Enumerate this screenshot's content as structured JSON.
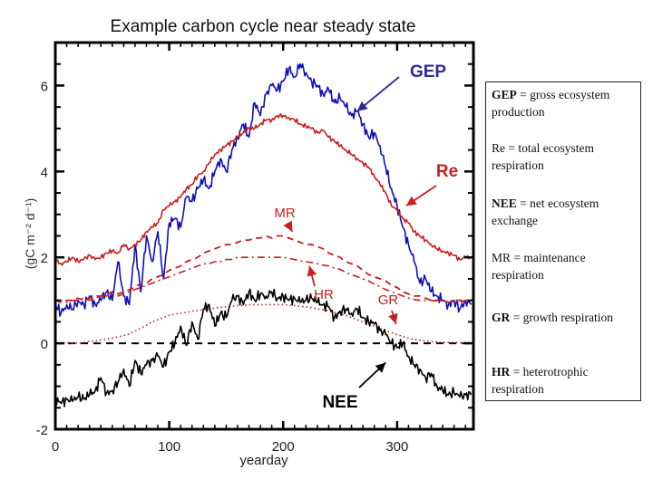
{
  "chart_data": {
    "type": "line",
    "title": "Example carbon cycle near steady state",
    "xlabel": "yearday",
    "ylabel": "(gC m⁻² d⁻¹)",
    "xlim": [
      0,
      367
    ],
    "ylim": [
      -2,
      7
    ],
    "xticks": [
      0,
      100,
      200,
      300
    ],
    "xtick_labels": [
      "0",
      "100",
      "200",
      "300"
    ],
    "yticks": [
      -2,
      0,
      2,
      4,
      6
    ],
    "ytick_labels": [
      "-2",
      "0",
      "2",
      "4",
      "6"
    ],
    "grid": false,
    "zero_line": {
      "y": 0,
      "style": "dashed",
      "color": "#000000"
    },
    "x": [
      0,
      5,
      10,
      15,
      20,
      25,
      30,
      35,
      40,
      45,
      50,
      55,
      60,
      65,
      70,
      75,
      80,
      85,
      90,
      95,
      100,
      105,
      110,
      115,
      120,
      125,
      130,
      135,
      140,
      145,
      150,
      155,
      160,
      165,
      170,
      175,
      180,
      185,
      190,
      195,
      200,
      205,
      210,
      215,
      220,
      225,
      230,
      235,
      240,
      245,
      250,
      255,
      260,
      265,
      270,
      275,
      280,
      285,
      290,
      295,
      300,
      305,
      310,
      315,
      320,
      325,
      330,
      335,
      340,
      345,
      350,
      355,
      360,
      365
    ],
    "series": [
      {
        "name": "GEP",
        "color": "#1010b8",
        "style": "solid",
        "values": [
          0.9,
          0.7,
          0.9,
          0.8,
          1.0,
          0.9,
          1.1,
          0.9,
          1.0,
          1.2,
          1.0,
          1.9,
          1.1,
          0.9,
          2.3,
          1.2,
          2.5,
          1.9,
          2.6,
          1.5,
          2.8,
          2.9,
          2.7,
          3.4,
          3.3,
          3.6,
          3.8,
          3.6,
          4.0,
          4.3,
          4.0,
          4.5,
          4.8,
          5.1,
          4.8,
          5.6,
          5.3,
          5.8,
          6.0,
          5.9,
          6.1,
          6.4,
          6.2,
          6.5,
          6.3,
          6.1,
          6.0,
          5.8,
          5.9,
          5.6,
          5.7,
          5.5,
          5.3,
          5.4,
          5.1,
          4.8,
          4.9,
          4.6,
          4.1,
          3.6,
          3.2,
          2.7,
          2.3,
          1.9,
          1.4,
          1.5,
          1.2,
          1.1,
          1.0,
          0.9,
          1.0,
          0.8,
          1.0,
          0.9
        ]
      },
      {
        "name": "Re",
        "color": "#c81e1e",
        "style": "solid",
        "values": [
          1.95,
          1.85,
          1.9,
          2.0,
          1.9,
          1.95,
          2.05,
          1.95,
          2.0,
          2.1,
          2.15,
          2.1,
          2.3,
          2.2,
          2.3,
          2.4,
          2.6,
          2.7,
          2.8,
          3.1,
          3.2,
          3.3,
          3.4,
          3.6,
          3.7,
          3.9,
          4.0,
          4.2,
          4.4,
          4.5,
          4.6,
          4.7,
          4.8,
          4.9,
          5.0,
          5.0,
          5.1,
          5.2,
          5.2,
          5.3,
          5.3,
          5.25,
          5.2,
          5.1,
          5.05,
          5.0,
          4.9,
          4.95,
          4.8,
          4.7,
          4.6,
          4.5,
          4.4,
          4.3,
          4.2,
          4.1,
          3.9,
          3.7,
          3.5,
          3.2,
          3.1,
          2.9,
          2.8,
          2.6,
          2.5,
          2.4,
          2.3,
          2.2,
          2.15,
          2.1,
          2.05,
          1.95,
          2.0,
          2.0
        ]
      },
      {
        "name": "MR",
        "color": "#c81e1e",
        "style": "dashed",
        "values": [
          1.0,
          0.95,
          1.0,
          1.0,
          1.05,
          1.0,
          1.05,
          1.1,
          1.1,
          1.15,
          1.2,
          1.15,
          1.2,
          1.25,
          1.3,
          1.4,
          1.4,
          1.5,
          1.55,
          1.6,
          1.7,
          1.75,
          1.8,
          1.9,
          1.95,
          2.0,
          2.1,
          2.15,
          2.2,
          2.25,
          2.3,
          2.3,
          2.35,
          2.4,
          2.4,
          2.45,
          2.45,
          2.5,
          2.45,
          2.5,
          2.5,
          2.45,
          2.4,
          2.35,
          2.3,
          2.3,
          2.25,
          2.2,
          2.1,
          2.05,
          2.0,
          1.9,
          1.85,
          1.8,
          1.7,
          1.6,
          1.55,
          1.5,
          1.45,
          1.35,
          1.3,
          1.2,
          1.15,
          1.1,
          1.1,
          1.05,
          1.0,
          1.0,
          1.0,
          0.95,
          1.0,
          1.0,
          1.0,
          1.0
        ]
      },
      {
        "name": "HR",
        "color": "#c81e1e",
        "style": "dashdot",
        "values": [
          1.0,
          1.0,
          0.95,
          1.0,
          1.0,
          1.05,
          1.0,
          1.05,
          1.1,
          1.1,
          1.15,
          1.1,
          1.15,
          1.2,
          1.25,
          1.3,
          1.35,
          1.4,
          1.45,
          1.5,
          1.55,
          1.6,
          1.65,
          1.7,
          1.75,
          1.8,
          1.85,
          1.85,
          1.9,
          1.9,
          1.95,
          1.95,
          2.0,
          2.0,
          2.0,
          2.0,
          2.0,
          2.0,
          2.0,
          2.0,
          2.0,
          1.98,
          1.95,
          1.92,
          1.9,
          1.88,
          1.85,
          1.82,
          1.8,
          1.75,
          1.72,
          1.65,
          1.6,
          1.55,
          1.5,
          1.45,
          1.38,
          1.32,
          1.25,
          1.2,
          1.15,
          1.1,
          1.05,
          1.02,
          1.0,
          1.0,
          1.0,
          0.98,
          1.0,
          0.95,
          1.0,
          0.95,
          1.0,
          1.0
        ]
      },
      {
        "name": "GR",
        "color": "#c81e1e",
        "style": "dotted",
        "values": [
          0.0,
          0.0,
          0.02,
          0.0,
          0.0,
          0.02,
          0.05,
          0.05,
          0.08,
          0.1,
          0.12,
          0.15,
          0.18,
          0.22,
          0.28,
          0.35,
          0.42,
          0.5,
          0.55,
          0.6,
          0.65,
          0.68,
          0.7,
          0.72,
          0.75,
          0.76,
          0.78,
          0.8,
          0.82,
          0.84,
          0.85,
          0.86,
          0.88,
          0.88,
          0.9,
          0.9,
          0.9,
          0.9,
          0.9,
          0.9,
          0.9,
          0.89,
          0.88,
          0.86,
          0.85,
          0.83,
          0.8,
          0.78,
          0.75,
          0.72,
          0.68,
          0.65,
          0.6,
          0.55,
          0.5,
          0.45,
          0.4,
          0.35,
          0.3,
          0.25,
          0.2,
          0.16,
          0.12,
          0.09,
          0.07,
          0.05,
          0.04,
          0.03,
          0.02,
          0.02,
          0.02,
          0.01,
          0.02,
          0.02
        ]
      },
      {
        "name": "NEE",
        "color": "#000000",
        "style": "solid",
        "values": [
          -1.3,
          -1.4,
          -1.3,
          -1.35,
          -1.25,
          -1.3,
          -1.2,
          -1.1,
          -0.8,
          -1.15,
          -1.1,
          -0.9,
          -0.6,
          -1.0,
          -0.4,
          -0.7,
          -0.5,
          -0.4,
          -0.3,
          -0.55,
          -0.2,
          0.0,
          0.4,
          -0.05,
          0.5,
          0.1,
          0.8,
          0.9,
          0.4,
          0.7,
          0.6,
          1.0,
          1.1,
          0.9,
          1.2,
          1.0,
          1.15,
          1.1,
          1.2,
          1.05,
          1.1,
          1.0,
          1.05,
          0.95,
          1.0,
          1.05,
          0.95,
          0.9,
          0.85,
          0.6,
          0.75,
          0.8,
          0.7,
          0.8,
          0.6,
          0.5,
          0.45,
          0.3,
          0.2,
          0.0,
          -0.1,
          0.0,
          -0.3,
          -0.5,
          -0.6,
          -0.8,
          -0.7,
          -1.0,
          -1.1,
          -1.2,
          -1.15,
          -1.25,
          -1.2,
          -1.2
        ]
      }
    ],
    "annotations": [
      {
        "text": "GEP",
        "color": "#2a2a9a",
        "arrow_to": {
          "x": 265,
          "y": 5.4
        }
      },
      {
        "text": "Re",
        "color": "#c81e1e",
        "arrow_to": {
          "x": 308,
          "y": 3.2
        }
      },
      {
        "text": "MR",
        "color": "#c81e1e",
        "arrow_to": {
          "x": 208,
          "y": 2.6
        }
      },
      {
        "text": "HR",
        "color": "#c81e1e",
        "arrow_to": {
          "x": 223,
          "y": 1.8
        }
      },
      {
        "text": "GR",
        "color": "#c81e1e",
        "arrow_to": {
          "x": 299,
          "y": 0.45
        }
      },
      {
        "text": "NEE",
        "color": "#000000",
        "arrow_to": {
          "x": 290,
          "y": -0.45
        }
      }
    ]
  },
  "legend": {
    "entries": [
      {
        "abbr": "GEP",
        "text": " = gross ecosystem production"
      },
      {
        "abbr": "Re",
        "text": " = total ecosystem respiration"
      },
      {
        "abbr": "NEE",
        "text": " = net ecosystem exchange"
      },
      {
        "abbr": "MR",
        "text": " = maintenance respiration"
      },
      {
        "abbr": "GR",
        "text": " = growth respiration"
      },
      {
        "abbr": "HR",
        "text": " = heterotrophic respiration"
      }
    ]
  }
}
